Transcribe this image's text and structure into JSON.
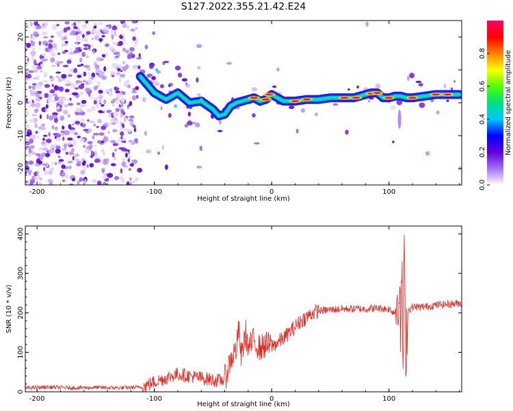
{
  "title": "S127.2022.355.21.42.E24",
  "chart_data": [
    {
      "type": "heatmap",
      "xlabel": "Height of straight line (km)",
      "ylabel": "Frequency (Hz)",
      "xlim": [
        -210,
        162
      ],
      "ylim": [
        -25,
        25
      ],
      "xticks": [
        -200,
        -100,
        0,
        100
      ],
      "yticks": [
        -20,
        -10,
        0,
        10,
        20
      ],
      "colorbar": {
        "label": "Normalized spectral amplitude",
        "range": [
          0,
          1
        ],
        "ticks": [
          "0.0",
          "0.2",
          "0.4",
          "0.6",
          "0.8"
        ],
        "colormap": [
          "#ffffff",
          "#a070f0",
          "#6000e0",
          "#0000ff",
          "#00c8ff",
          "#00e080",
          "#50ff00",
          "#ffff00",
          "#ff8000",
          "#ff0000",
          "#ff0060"
        ]
      },
      "ridge": {
        "x": [
          -112,
          -100,
          -90,
          -80,
          -70,
          -60,
          -50,
          -45,
          -40,
          -35,
          -30,
          -25,
          -20,
          -15,
          -10,
          -5,
          0,
          5,
          10,
          20,
          30,
          40,
          50,
          60,
          70,
          80,
          85,
          90,
          95,
          100,
          105,
          110,
          115,
          120,
          130,
          140,
          150,
          160
        ],
        "y": [
          8,
          3,
          1,
          3,
          0,
          0.5,
          -2,
          -4,
          -3.5,
          -1,
          0,
          0.5,
          1,
          1.5,
          0.5,
          1,
          2.5,
          1.5,
          0.5,
          0.5,
          1,
          1,
          1.5,
          1.5,
          1.5,
          2.5,
          3,
          3,
          1.5,
          1.5,
          2,
          2,
          1.5,
          1.5,
          2,
          2.5,
          2.5,
          2.5
        ]
      }
    },
    {
      "type": "line",
      "xlabel": "Height of straight line (km)",
      "ylabel": "SNR (10 * v/v)",
      "xlim": [
        -210,
        162
      ],
      "ylim": [
        0,
        420
      ],
      "xticks": [
        -200,
        -100,
        0,
        100
      ],
      "yticks": [
        0,
        100,
        200,
        300,
        400
      ],
      "color": "#e8221c",
      "series": [
        {
          "x": [
            -210,
            -190,
            -170,
            -150,
            -130,
            -110,
            -100,
            -90,
            -80,
            -70,
            -60,
            -50,
            -45,
            -40,
            -35,
            -30,
            -28,
            -26,
            -24,
            -22,
            -20,
            -15,
            -10,
            -5,
            0,
            5,
            10,
            15,
            20,
            25,
            30,
            35,
            40,
            50,
            60,
            70,
            80,
            90,
            100,
            105,
            108,
            110,
            111,
            112,
            113,
            114,
            116,
            120,
            130,
            140,
            150,
            162
          ],
          "values": [
            10,
            12,
            10,
            11,
            10,
            12,
            25,
            35,
            45,
            40,
            35,
            30,
            28,
            32,
            80,
            110,
            160,
            85,
            120,
            150,
            110,
            130,
            110,
            120,
            115,
            125,
            135,
            150,
            165,
            180,
            190,
            200,
            205,
            208,
            210,
            210,
            210,
            212,
            210,
            200,
            260,
            150,
            340,
            40,
            380,
            90,
            205,
            215,
            215,
            220,
            222,
            225
          ]
        }
      ]
    }
  ]
}
